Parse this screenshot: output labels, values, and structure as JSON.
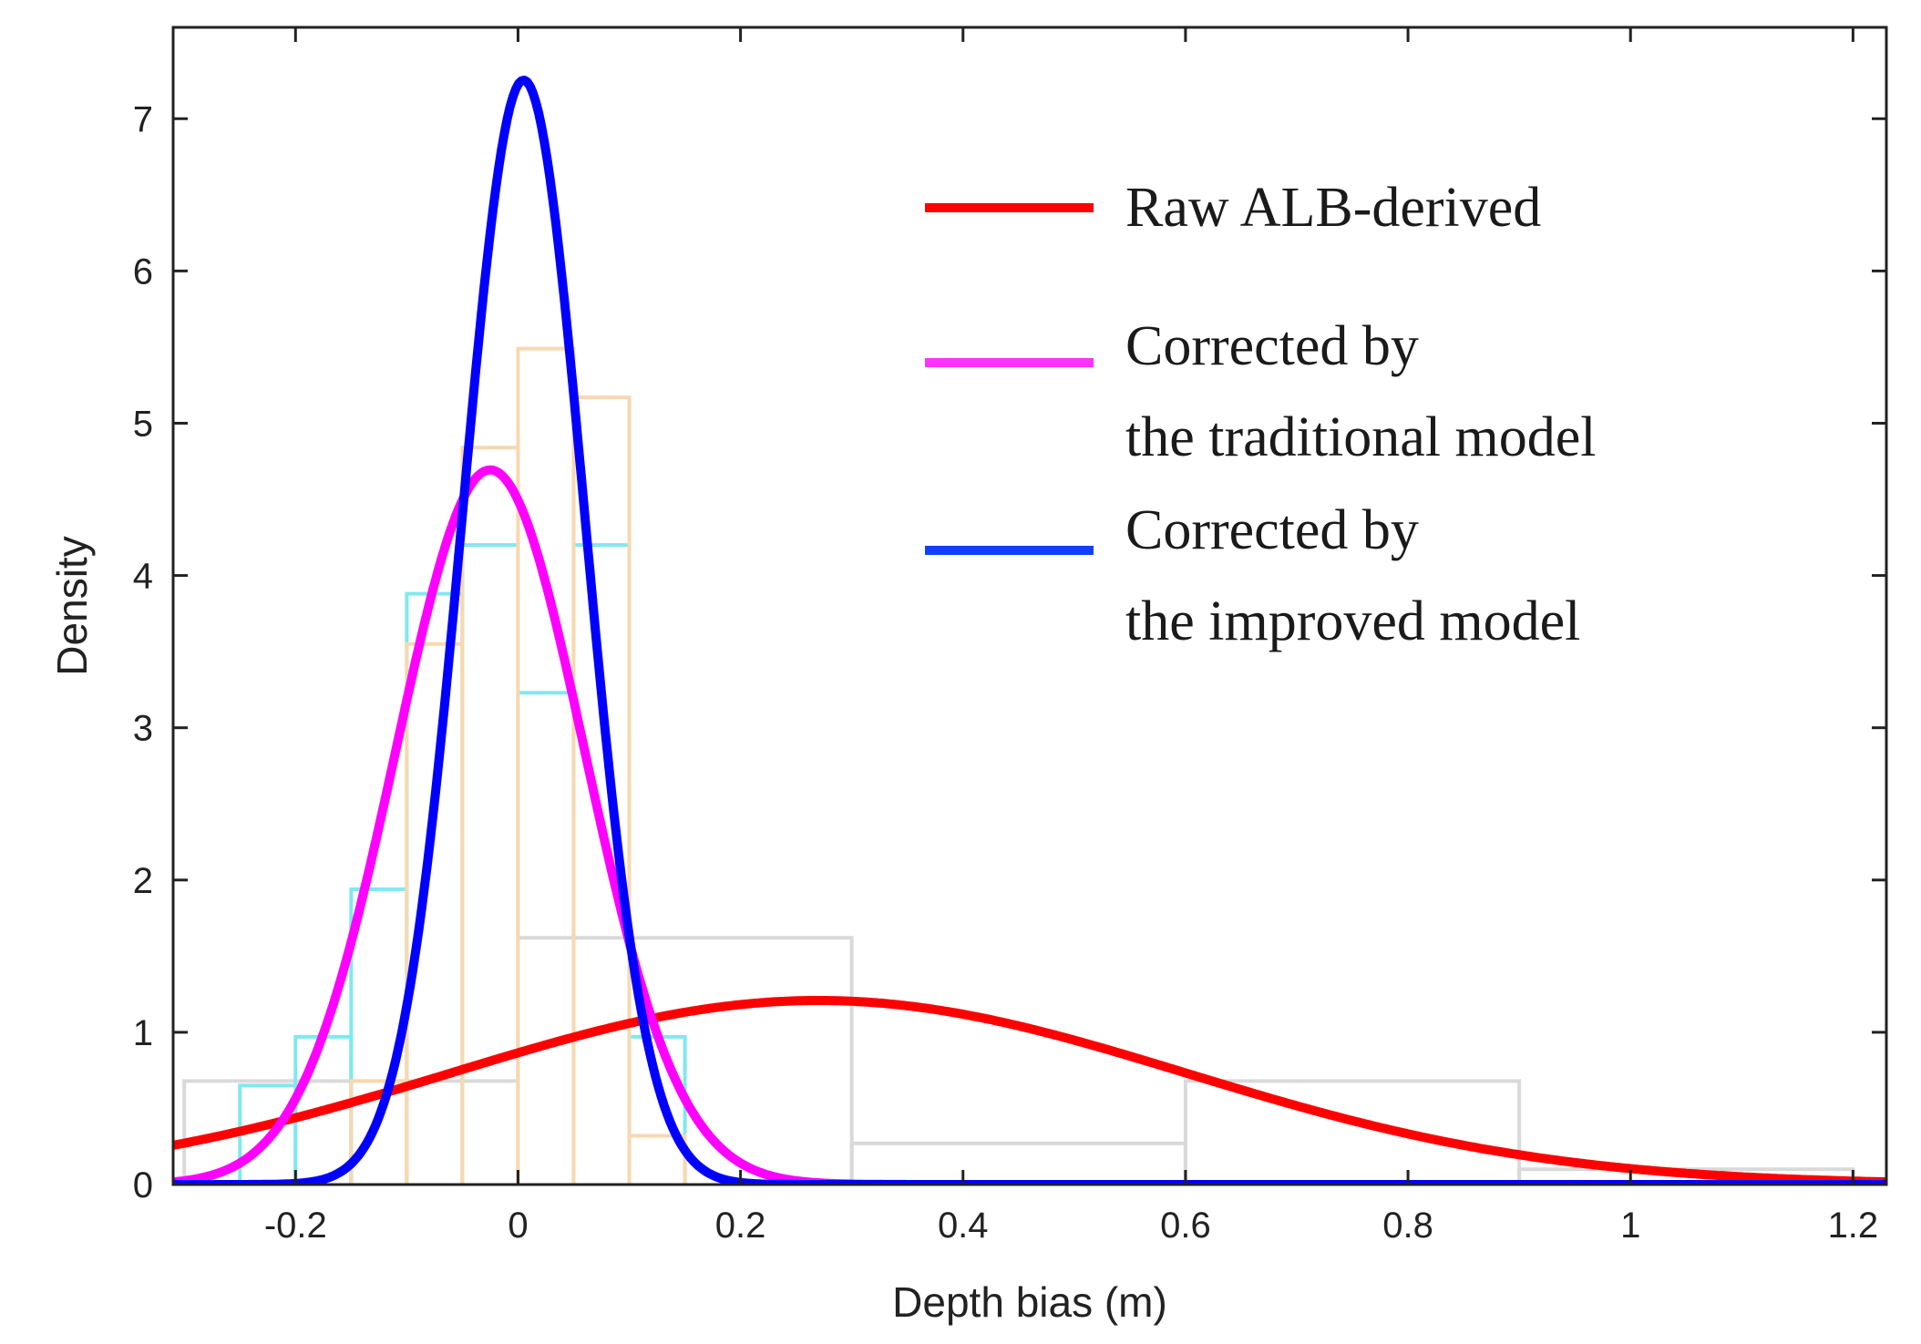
{
  "chart_data": {
    "type": "line",
    "title": "",
    "xlabel": "Depth bias (m)",
    "ylabel": "Density",
    "xlim": [
      -0.31,
      1.23
    ],
    "ylim": [
      0,
      7.6
    ],
    "xticks": [
      -0.2,
      0,
      0.2,
      0.4,
      0.6,
      0.8,
      1,
      1.2
    ],
    "xtick_labels": [
      "-0.2",
      "0",
      "0.2",
      "0.4",
      "0.6",
      "0.8",
      "1",
      "1.2"
    ],
    "yticks": [
      0,
      1,
      2,
      3,
      4,
      5,
      6,
      7
    ],
    "ytick_labels": [
      "0",
      "1",
      "2",
      "3",
      "4",
      "5",
      "6",
      "7"
    ],
    "grid": false,
    "legend_position": "top-right",
    "series": [
      {
        "name": "Raw ALB-derived",
        "kind": "normal-pdf",
        "mean": 0.27,
        "sd": 0.33,
        "color": "#ff0000"
      },
      {
        "name": "Corrected by the traditional model",
        "kind": "normal-pdf",
        "mean": -0.025,
        "sd": 0.085,
        "color": "#ff00ff"
      },
      {
        "name": "Corrected by the improved model",
        "kind": "normal-pdf",
        "mean": 0.005,
        "sd": 0.055,
        "color": "#0000ff"
      }
    ],
    "histograms": [
      {
        "name": "Raw ALB-derived histogram",
        "color": "#d9d9d9",
        "bin_edges": [
          -0.3,
          0,
          0.3,
          0.6,
          0.9,
          1.2
        ],
        "densities": [
          0.68,
          1.62,
          0.27,
          0.68,
          0.1
        ]
      },
      {
        "name": "Traditional model histogram",
        "color": "#80e8f0",
        "bin_edges": [
          -0.25,
          -0.2,
          -0.15,
          -0.1,
          -0.05,
          0,
          0.05,
          0.1,
          0.15
        ],
        "densities": [
          0.65,
          0.97,
          1.94,
          3.88,
          4.2,
          3.23,
          4.2,
          0.97
        ]
      },
      {
        "name": "Improved model histogram",
        "color": "#f8d8b0",
        "bin_edges": [
          -0.15,
          -0.1,
          -0.05,
          0,
          0.05,
          0.1,
          0.15
        ],
        "densities": [
          0.68,
          3.55,
          4.84,
          5.49,
          5.17,
          0.32
        ]
      }
    ],
    "legend": [
      {
        "label_lines": [
          "Raw ALB-derived"
        ],
        "color": "#ff0000"
      },
      {
        "label_lines": [
          "Corrected by",
          "the traditional model"
        ],
        "color": "#ff33ff"
      },
      {
        "label_lines": [
          "Corrected by",
          "the improved model"
        ],
        "color": "#1040ff"
      }
    ]
  }
}
